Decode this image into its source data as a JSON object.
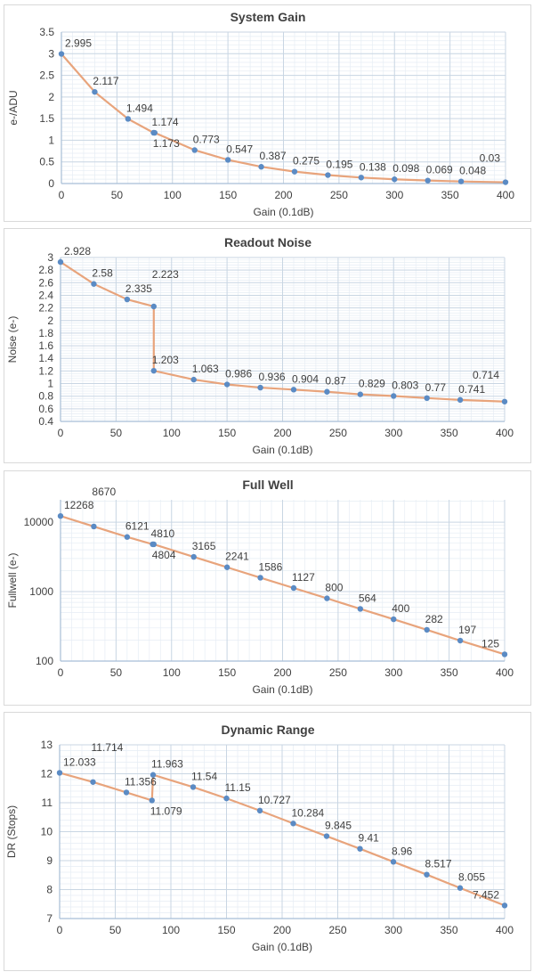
{
  "chart_data": [
    {
      "type": "line",
      "title": "System Gain",
      "xlabel": "Gain (0.1dB)",
      "ylabel": "e-/ADU",
      "xlim": [
        0,
        400
      ],
      "ylim": [
        0,
        3.5
      ],
      "yscale": "linear",
      "xticks": [
        0,
        50,
        100,
        150,
        200,
        250,
        300,
        350,
        400
      ],
      "yticks": [
        0,
        0.5,
        1,
        1.5,
        2,
        2.5,
        3,
        3.5
      ],
      "ytick_labels": [
        "0",
        "0.5",
        "1",
        "1.5",
        "2",
        "2.5",
        "3",
        "3.5"
      ],
      "grid": true,
      "x": [
        0,
        30,
        60,
        83,
        84,
        120,
        150,
        180,
        210,
        240,
        270,
        300,
        330,
        360,
        400
      ],
      "values": [
        2.995,
        2.117,
        1.494,
        1.174,
        1.173,
        0.773,
        0.547,
        0.387,
        0.275,
        0.195,
        0.138,
        0.098,
        0.069,
        0.048,
        0.03
      ],
      "labels": [
        "2.995",
        "2.117",
        "1.494",
        "1.174",
        "1.173",
        "0.773",
        "0.547",
        "0.387",
        "0.275",
        "0.195",
        "0.138",
        "0.098",
        "0.069",
        "0.048",
        "0.03"
      ]
    },
    {
      "type": "line",
      "title": "Readout Noise",
      "xlabel": "Gain (0.1dB)",
      "ylabel": "Noise (e-)",
      "xlim": [
        0,
        400
      ],
      "ylim": [
        0.4,
        3
      ],
      "yscale": "linear",
      "xticks": [
        0,
        50,
        100,
        150,
        200,
        250,
        300,
        350,
        400
      ],
      "yticks": [
        0.4,
        0.6,
        0.8,
        1,
        1.2,
        1.4,
        1.6,
        1.8,
        2,
        2.2,
        2.4,
        2.6,
        2.8,
        3
      ],
      "ytick_labels": [
        "0.4",
        "0.6",
        "0.8",
        "1",
        "1.2",
        "1.4",
        "1.6",
        "1.8",
        "2",
        "2.2",
        "2.4",
        "2.6",
        "2.8",
        "3"
      ],
      "grid": true,
      "x": [
        0,
        30,
        60,
        84,
        84,
        120,
        150,
        180,
        210,
        240,
        270,
        300,
        330,
        360,
        400
      ],
      "values": [
        2.928,
        2.58,
        2.335,
        2.223,
        1.203,
        1.063,
        0.986,
        0.936,
        0.904,
        0.87,
        0.829,
        0.803,
        0.77,
        0.741,
        0.714
      ],
      "labels": [
        "2.928",
        "2.58",
        "2.335",
        "2.223",
        "1.203",
        "1.063",
        "0.986",
        "0.936",
        "0.904",
        "0.87",
        "0.829",
        "0.803",
        "0.77",
        "0.741",
        "0.714"
      ]
    },
    {
      "type": "line",
      "title": "Full Well",
      "xlabel": "Gain (0.1dB)",
      "ylabel": "Fullwell (e-)",
      "xlim": [
        0,
        400
      ],
      "ylim": [
        100,
        21000
      ],
      "yscale": "log",
      "xticks": [
        0,
        50,
        100,
        150,
        200,
        250,
        300,
        350,
        400
      ],
      "yticks": [
        100,
        1000,
        10000
      ],
      "ytick_labels": [
        "100",
        "1000",
        "10000"
      ],
      "grid": true,
      "x": [
        0,
        30,
        60,
        83,
        84,
        120,
        150,
        180,
        210,
        240,
        270,
        300,
        330,
        360,
        400
      ],
      "values": [
        12268,
        8670,
        6121,
        4810,
        4804,
        3165,
        2241,
        1586,
        1127,
        800,
        564,
        400,
        282,
        197,
        125
      ],
      "labels": [
        "12268",
        "8670",
        "6121",
        "4810",
        "4804",
        "3165",
        "2241",
        "1586",
        "1127",
        "800",
        "564",
        "400",
        "282",
        "197",
        "125"
      ]
    },
    {
      "type": "line",
      "title": "Dynamic Range",
      "xlabel": "Gain (0.1dB)",
      "ylabel": "DR (Stops)",
      "xlim": [
        0,
        400
      ],
      "ylim": [
        7,
        13
      ],
      "yscale": "linear",
      "xticks": [
        0,
        50,
        100,
        150,
        200,
        250,
        300,
        350,
        400
      ],
      "yticks": [
        7,
        8,
        9,
        10,
        11,
        12,
        13
      ],
      "ytick_labels": [
        "7",
        "8",
        "9",
        "10",
        "11",
        "12",
        "13"
      ],
      "grid": true,
      "x": [
        0,
        30,
        60,
        83,
        84,
        120,
        150,
        180,
        210,
        240,
        270,
        300,
        330,
        360,
        400
      ],
      "values": [
        12.033,
        11.714,
        11.356,
        11.079,
        11.963,
        11.54,
        11.15,
        10.727,
        10.284,
        9.845,
        9.41,
        8.96,
        8.517,
        8.055,
        7.452
      ],
      "labels": [
        "12.033",
        "11.714",
        "11.356",
        "11.079",
        "11.963",
        "11.54",
        "11.15",
        "10.727",
        "10.284",
        "9.845",
        "9.41",
        "8.96",
        "8.517",
        "8.055",
        "7.452"
      ]
    }
  ],
  "colors": {
    "line": "#e8a47c",
    "marker": "#5b8bc4",
    "grid_major": "#c9d6e3",
    "grid_minor": "#e6edf4",
    "axis": "#a8bed6"
  }
}
